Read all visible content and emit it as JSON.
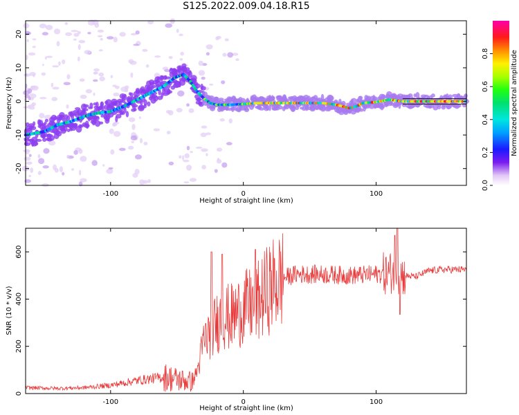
{
  "figure": {
    "title": "S125.2022.009.04.18.R15"
  },
  "chart_data": [
    {
      "type": "heatmap",
      "name": "spectrogram",
      "xlabel": "Height of straight line (km)",
      "ylabel": "Frequency (Hz)",
      "xlim": [
        -164,
        168
      ],
      "ylim": [
        -25,
        24
      ],
      "xticks": [
        -100,
        0,
        100
      ],
      "yticks": [
        -20,
        -10,
        0,
        10,
        20
      ],
      "colorbar": {
        "label": "Normalized spectral amplitude",
        "range": [
          0,
          1
        ],
        "ticks": [
          "0.0",
          "0.2",
          "0.4",
          "0.6",
          "0.8"
        ],
        "colormap": "gist_ncar-like: white, violet, blue, cyan, green, yellow, red, magenta"
      },
      "ridge": {
        "x": [
          -164,
          -150,
          -140,
          -130,
          -120,
          -110,
          -100,
          -90,
          -80,
          -70,
          -60,
          -52,
          -45,
          -40,
          -35,
          -30,
          -25,
          -20,
          -10,
          0,
          10,
          20,
          30,
          40,
          50,
          60,
          70,
          75,
          80,
          85,
          90,
          100,
          110,
          120,
          130,
          140,
          150,
          160,
          168
        ],
        "y": [
          -10,
          -9,
          -7,
          -6,
          -4.5,
          -3.5,
          -3,
          -1.5,
          0.5,
          2.5,
          4.5,
          7,
          8,
          6,
          3,
          1,
          -0.5,
          -1,
          -1,
          -0.8,
          -0.5,
          -0.5,
          -0.5,
          -0.5,
          -0.5,
          -0.5,
          -1,
          -1.5,
          -2,
          -1.5,
          -0.5,
          -0.2,
          0.5,
          0,
          0,
          0,
          0,
          0,
          0
        ]
      }
    },
    {
      "type": "line",
      "name": "snr",
      "xlabel": "Height of straight line (km)",
      "ylabel": "SNR (10 * v/v)",
      "xlim": [
        -164,
        168
      ],
      "ylim": [
        0,
        700
      ],
      "xticks": [
        -100,
        0,
        100
      ],
      "yticks": [
        0,
        200,
        400,
        600
      ],
      "color": "#e83a3a",
      "envelope": {
        "x": [
          -164,
          -140,
          -120,
          -100,
          -80,
          -60,
          -45,
          -38,
          -34,
          -30,
          -25,
          -20,
          -15,
          -10,
          -5,
          0,
          10,
          20,
          30,
          40,
          60,
          80,
          100,
          110,
          115,
          120,
          130,
          140,
          150,
          168
        ],
        "y": [
          25,
          22,
          25,
          35,
          55,
          70,
          55,
          50,
          110,
          220,
          260,
          300,
          330,
          320,
          340,
          360,
          380,
          450,
          490,
          505,
          505,
          500,
          505,
          510,
          520,
          500,
          495,
          520,
          525,
          525
        ]
      },
      "spikes": [
        {
          "x": -24,
          "y": 600
        },
        {
          "x": -16,
          "y": 590
        },
        {
          "x": 9,
          "y": 610
        },
        {
          "x": 114,
          "y": 670
        },
        {
          "x": 116,
          "y": 700
        },
        {
          "x": 118,
          "y": 335
        }
      ]
    }
  ]
}
